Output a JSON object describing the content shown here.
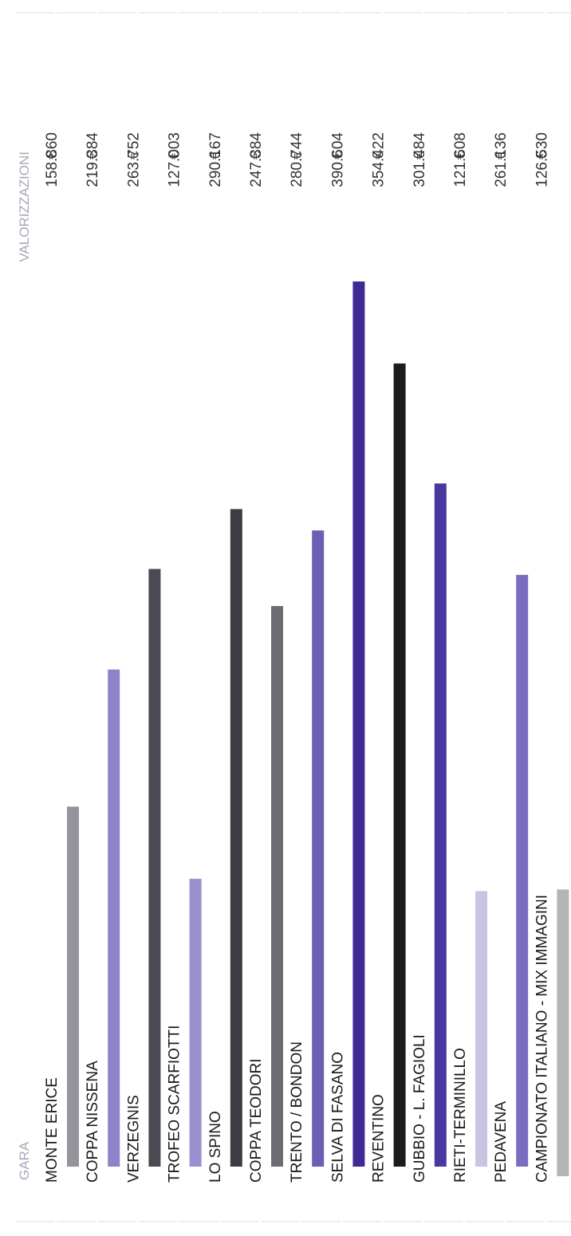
{
  "chart_data": {
    "type": "bar",
    "orientation": "vertical-bars, rotated labels",
    "header_left": "GARA",
    "header_right": "VALORIZZAZIONI",
    "currency": "€",
    "categories": [
      "MONTE ERICE",
      "COPPA NISSENA",
      "VERZEGNIS",
      "TROFEO SCARFIOTTI",
      "LO SPINO",
      "COPPA TEODORI",
      "TRENTO / BONDON",
      "SELVA DI FASANO",
      "REVENTINO",
      "GUBBIO - L. FAGIOLI",
      "RIETI-TERMINILLO",
      "PEDAVENA",
      "CAMPIONATO ITALIANO - MIX IMMAGINI"
    ],
    "value_labels": [
      "158.860",
      "219.384",
      "263.752",
      "127.003",
      "290.167",
      "247.384",
      "280.744",
      "390.604",
      "354.422",
      "301.484",
      "121.608",
      "261.136",
      "126.530"
    ],
    "values": [
      158860,
      219384,
      263752,
      127003,
      290167,
      247384,
      280744,
      390604,
      354422,
      301484,
      121608,
      261136,
      126530
    ],
    "bar_colors": [
      "#94949c",
      "#8c84c8",
      "#4a4a52",
      "#9a90d0",
      "#3c3c44",
      "#6c6c74",
      "#6a5fb4",
      "#3f2a94",
      "#1c1c1c",
      "#4a38a0",
      "#cac4e4",
      "#7a6cc0",
      "#b4b4b4"
    ],
    "label_color": "#1a1a1a",
    "header_color": "#a8a8b8",
    "gridline_color": "#dcdce4"
  }
}
